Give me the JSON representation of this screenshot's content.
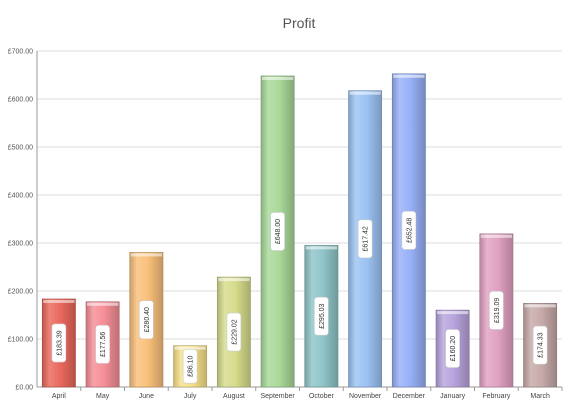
{
  "chart_data": {
    "type": "bar",
    "title": "Profit",
    "categories": [
      "April",
      "May",
      "June",
      "July",
      "August",
      "September",
      "October",
      "November",
      "December",
      "January",
      "February",
      "March"
    ],
    "values": [
      183.39,
      177.56,
      280.4,
      86.1,
      229.02,
      648.0,
      295.03,
      617.42,
      652.48,
      160.2,
      319.09,
      174.33
    ],
    "value_labels": [
      "£183.39",
      "£177.56",
      "£280.40",
      "£86.10",
      "£229.02",
      "£648.00",
      "£295.03",
      "£617.42",
      "£652.48",
      "£160.20",
      "£319.09",
      "£174.33"
    ],
    "y_ticks": [
      0,
      100,
      200,
      300,
      400,
      500,
      600,
      700
    ],
    "y_tick_labels": [
      "£0.00",
      "£100.00",
      "£200.00",
      "£300.00",
      "£400.00",
      "£500.00",
      "£600.00",
      "£700.00"
    ],
    "ylim": [
      0,
      700
    ],
    "grid": true,
    "colors": [
      "#e9685c",
      "#f58e96",
      "#f9c07a",
      "#f7e18a",
      "#d6dc8c",
      "#a9d999",
      "#8fc5c9",
      "#9cc3f3",
      "#97b0f7",
      "#b7a3dd",
      "#e1a1c2",
      "#c7aaa9"
    ]
  }
}
